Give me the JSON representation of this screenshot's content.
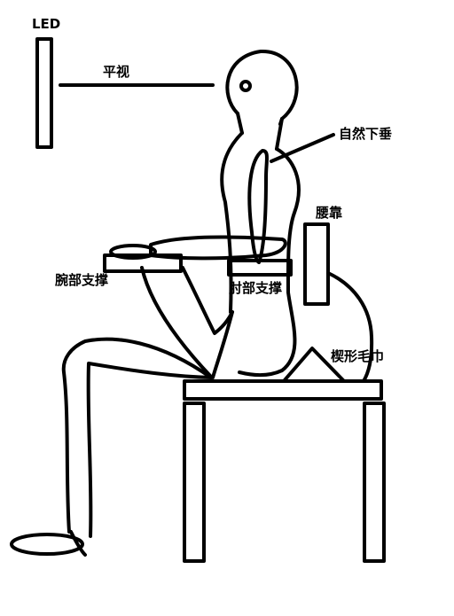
{
  "labels": {
    "led": "LED",
    "eye_level": "平视",
    "natural_hang": "自然下垂",
    "lumbar_support": "腰靠",
    "wrist_support": "腕部支撑",
    "elbow_support": "肘部支撑",
    "wedge_towel": "楔形毛巾"
  }
}
